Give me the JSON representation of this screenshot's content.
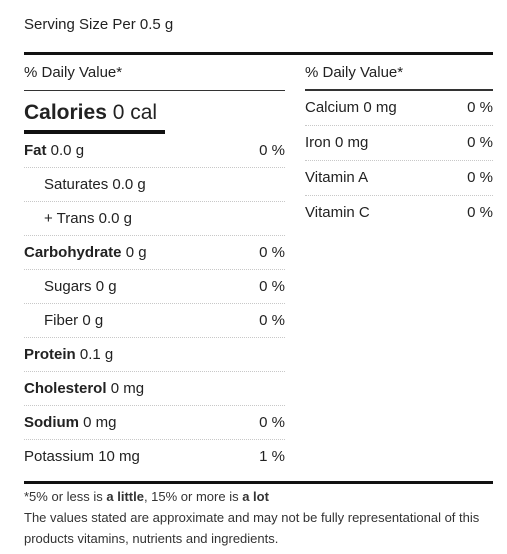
{
  "serving": "Serving Size Per 0.5 g",
  "dv_header": "% Daily Value*",
  "calories": {
    "label": "Calories",
    "value": "0 cal"
  },
  "left_rows": [
    {
      "label": "Fat",
      "value": "0.0 g",
      "pct": "0 %"
    },
    {
      "label": "Saturates",
      "value": "0.0 g",
      "pct": ""
    },
    {
      "label": "+ Trans",
      "value": "0.0 g",
      "pct": ""
    },
    {
      "label": "Carbohydrate",
      "value": "0 g",
      "pct": "0 %"
    },
    {
      "label": "Sugars",
      "value": "0 g",
      "pct": "0 %"
    },
    {
      "label": "Fiber",
      "value": "0 g",
      "pct": "0 %"
    },
    {
      "label": "Protein",
      "value": "0.1 g",
      "pct": ""
    },
    {
      "label": "Cholesterol",
      "value": "0 mg",
      "pct": ""
    },
    {
      "label": "Sodium",
      "value": "0 mg",
      "pct": "0 %"
    },
    {
      "label": "Potassium",
      "value": "10 mg",
      "pct": "1 %"
    }
  ],
  "right_rows": [
    {
      "label": "Calcium",
      "value": "0 mg",
      "pct": "0 %"
    },
    {
      "label": "Iron",
      "value": "0 mg",
      "pct": "0 %"
    },
    {
      "label": "Vitamin A",
      "value": "",
      "pct": "0 %"
    },
    {
      "label": "Vitamin C",
      "value": "",
      "pct": "0 %"
    }
  ],
  "footnote": {
    "p1": "*5% or less is ",
    "b1": "a little",
    "p2": ", 15% or more is ",
    "b2": "a lot",
    "disclaimer": "The values stated are approximate and may not be fully representational of this products vitamins, nutrients and ingredients."
  }
}
